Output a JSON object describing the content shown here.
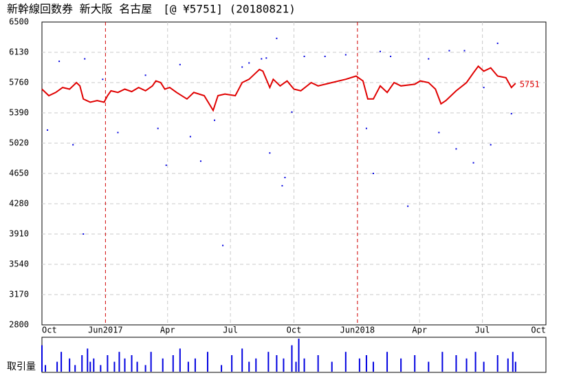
{
  "chart_data": {
    "type": "line",
    "title": "新幹線回数券 新大阪 名古屋　[@ ¥5751] (20180821)",
    "xlim": [
      0,
      730
    ],
    "xticks": [
      {
        "value": 0,
        "label": "Oct"
      },
      {
        "value": 92,
        "label": "Jun2017"
      },
      {
        "value": 182,
        "label": "Apr"
      },
      {
        "value": 273,
        "label": "Jul"
      },
      {
        "value": 365,
        "label": "Oct"
      },
      {
        "value": 457,
        "label": "Jun2018"
      },
      {
        "value": 547,
        "label": "Apr"
      },
      {
        "value": 638,
        "label": "Jul"
      },
      {
        "value": 730,
        "label": "Oct"
      }
    ],
    "ylim": [
      2800,
      6500
    ],
    "yticks": [
      2800,
      3170,
      3540,
      3910,
      4280,
      4650,
      5020,
      5390,
      5760,
      6130,
      6500
    ],
    "grid": true,
    "color": "#e00000",
    "x": [
      0,
      10,
      20,
      30,
      40,
      50,
      55,
      60,
      70,
      80,
      90,
      95,
      100,
      110,
      120,
      130,
      140,
      150,
      160,
      165,
      172,
      178,
      185,
      195,
      210,
      220,
      235,
      248,
      255,
      265,
      280,
      290,
      300,
      310,
      315,
      320,
      330,
      335,
      345,
      355,
      365,
      375,
      390,
      400,
      420,
      440,
      455,
      465,
      472,
      480,
      490,
      500,
      510,
      520,
      540,
      548,
      560,
      570,
      578,
      585,
      600,
      615,
      625,
      632,
      640,
      650,
      660,
      672,
      680,
      686
    ],
    "values": [
      5680,
      5600,
      5640,
      5700,
      5680,
      5760,
      5720,
      5560,
      5520,
      5540,
      5520,
      5600,
      5660,
      5640,
      5680,
      5650,
      5700,
      5660,
      5720,
      5780,
      5760,
      5680,
      5700,
      5640,
      5560,
      5640,
      5600,
      5420,
      5600,
      5620,
      5600,
      5760,
      5800,
      5880,
      5920,
      5900,
      5700,
      5800,
      5720,
      5780,
      5680,
      5660,
      5760,
      5720,
      5760,
      5800,
      5840,
      5780,
      5560,
      5560,
      5720,
      5640,
      5760,
      5720,
      5740,
      5780,
      5760,
      5680,
      5500,
      5540,
      5660,
      5760,
      5880,
      5960,
      5900,
      5940,
      5840,
      5820,
      5700,
      5751
    ],
    "scatter": {
      "color": "#0000e0",
      "x": [
        8,
        25,
        45,
        60,
        62,
        88,
        110,
        150,
        168,
        180,
        200,
        215,
        230,
        250,
        262,
        290,
        300,
        318,
        325,
        330,
        340,
        348,
        352,
        362,
        380,
        410,
        440,
        470,
        480,
        490,
        505,
        530,
        560,
        575,
        590,
        600,
        612,
        625,
        640,
        650,
        660,
        680
      ],
      "values": [
        5180,
        6020,
        5000,
        3910,
        6050,
        5800,
        5150,
        5850,
        5200,
        4750,
        5980,
        5100,
        4800,
        5300,
        3770,
        5950,
        6000,
        6050,
        6060,
        4900,
        6300,
        4500,
        4600,
        5400,
        6080,
        6080,
        6100,
        5200,
        4650,
        6140,
        6080,
        4250,
        6050,
        5150,
        6150,
        4950,
        6150,
        4780,
        5700,
        5000,
        6240,
        5380
      ]
    },
    "volume": {
      "label": "取引量",
      "color": "#0000e0",
      "x": [
        0,
        5,
        22,
        28,
        40,
        48,
        58,
        66,
        70,
        75,
        85,
        95,
        105,
        112,
        120,
        130,
        138,
        150,
        158,
        175,
        190,
        200,
        212,
        222,
        240,
        260,
        275,
        290,
        300,
        310,
        328,
        340,
        350,
        362,
        368,
        372,
        380,
        400,
        420,
        440,
        460,
        470,
        480,
        500,
        520,
        540,
        560,
        580,
        600,
        615,
        628,
        640,
        660,
        675,
        682,
        686
      ],
      "values": [
        8,
        2,
        3,
        6,
        4,
        2,
        5,
        7,
        3,
        4,
        2,
        5,
        3,
        6,
        4,
        5,
        3,
        2,
        6,
        4,
        5,
        7,
        3,
        4,
        6,
        2,
        5,
        7,
        3,
        4,
        6,
        5,
        4,
        8,
        3,
        10,
        4,
        5,
        3,
        6,
        4,
        5,
        3,
        6,
        4,
        5,
        3,
        6,
        5,
        4,
        6,
        3,
        5,
        4,
        6,
        3
      ]
    }
  }
}
